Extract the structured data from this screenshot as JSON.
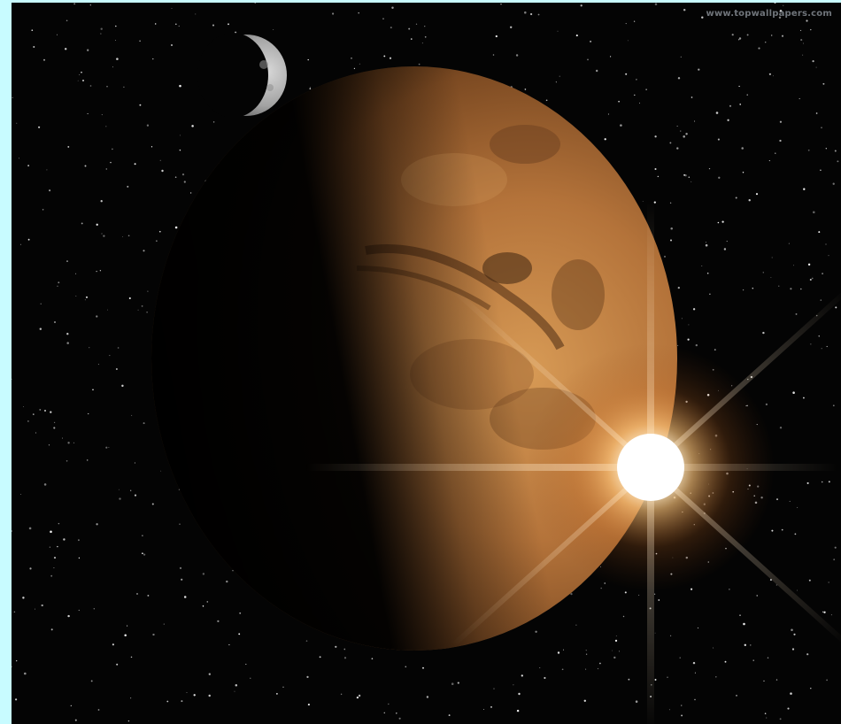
{
  "image": {
    "watermark": "www.topwallpapers.com",
    "subjects": [
      "moon-crescent",
      "mars-planet",
      "sun-flare",
      "starfield"
    ],
    "colors": {
      "border": "#c8fbff",
      "space": "#040404",
      "mars_light": "#c9894a",
      "mars_dark": "#5a3416",
      "sun_core": "#ffffff",
      "sun_glow": "#ffb35a"
    }
  }
}
